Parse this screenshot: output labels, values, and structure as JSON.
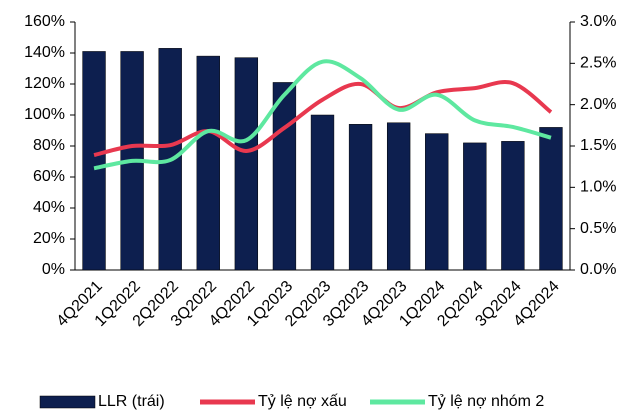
{
  "chart_data": {
    "type": "bar_line",
    "categories": [
      "4Q2021",
      "1Q2022",
      "2Q2022",
      "3Q2022",
      "4Q2022",
      "1Q2023",
      "2Q2023",
      "3Q2023",
      "4Q2023",
      "1Q2024",
      "2Q2024",
      "3Q2024",
      "4Q2024"
    ],
    "series": [
      {
        "name": "LLR (trái)",
        "type": "bar",
        "color": "#0d1f4f",
        "values": [
          141,
          141,
          143,
          138,
          137,
          121,
          100,
          94,
          95,
          88,
          82,
          83,
          92
        ]
      },
      {
        "name": "Tỷ lệ nợ xấu",
        "type": "line",
        "axis": "y2",
        "color": "#e8384f",
        "values": [
          1.39,
          1.5,
          1.51,
          1.68,
          1.44,
          1.72,
          2.06,
          2.25,
          1.96,
          2.15,
          2.2,
          2.26,
          1.91
        ]
      },
      {
        "name": "Tỷ lệ nợ nhóm 2",
        "type": "line",
        "axis": "y2",
        "color": "#5ee8a0",
        "values": [
          1.23,
          1.32,
          1.33,
          1.68,
          1.57,
          2.12,
          2.52,
          2.32,
          1.94,
          2.12,
          1.81,
          1.73,
          1.6
        ]
      }
    ],
    "ylim": [
      0,
      160
    ],
    "yticks": [
      {
        "value": 0,
        "label": "0%"
      },
      {
        "value": 20,
        "label": "20%"
      },
      {
        "value": 40,
        "label": "40%"
      },
      {
        "value": 60,
        "label": "60%"
      },
      {
        "value": 80,
        "label": "80%"
      },
      {
        "value": 100,
        "label": "100%"
      },
      {
        "value": 120,
        "label": "120%"
      },
      {
        "value": 140,
        "label": "140%"
      },
      {
        "value": 160,
        "label": "160%"
      }
    ],
    "y2lim": [
      0,
      3
    ],
    "y2ticks": [
      {
        "value": 0,
        "label": "0.0%"
      },
      {
        "value": 0.5,
        "label": "0.5%"
      },
      {
        "value": 1,
        "label": "1.0%"
      },
      {
        "value": 1.5,
        "label": "1.5%"
      },
      {
        "value": 2,
        "label": "2.0%"
      },
      {
        "value": 2.5,
        "label": "2.5%"
      },
      {
        "value": 3,
        "label": "3.0%"
      }
    ],
    "legend": "bottom"
  }
}
